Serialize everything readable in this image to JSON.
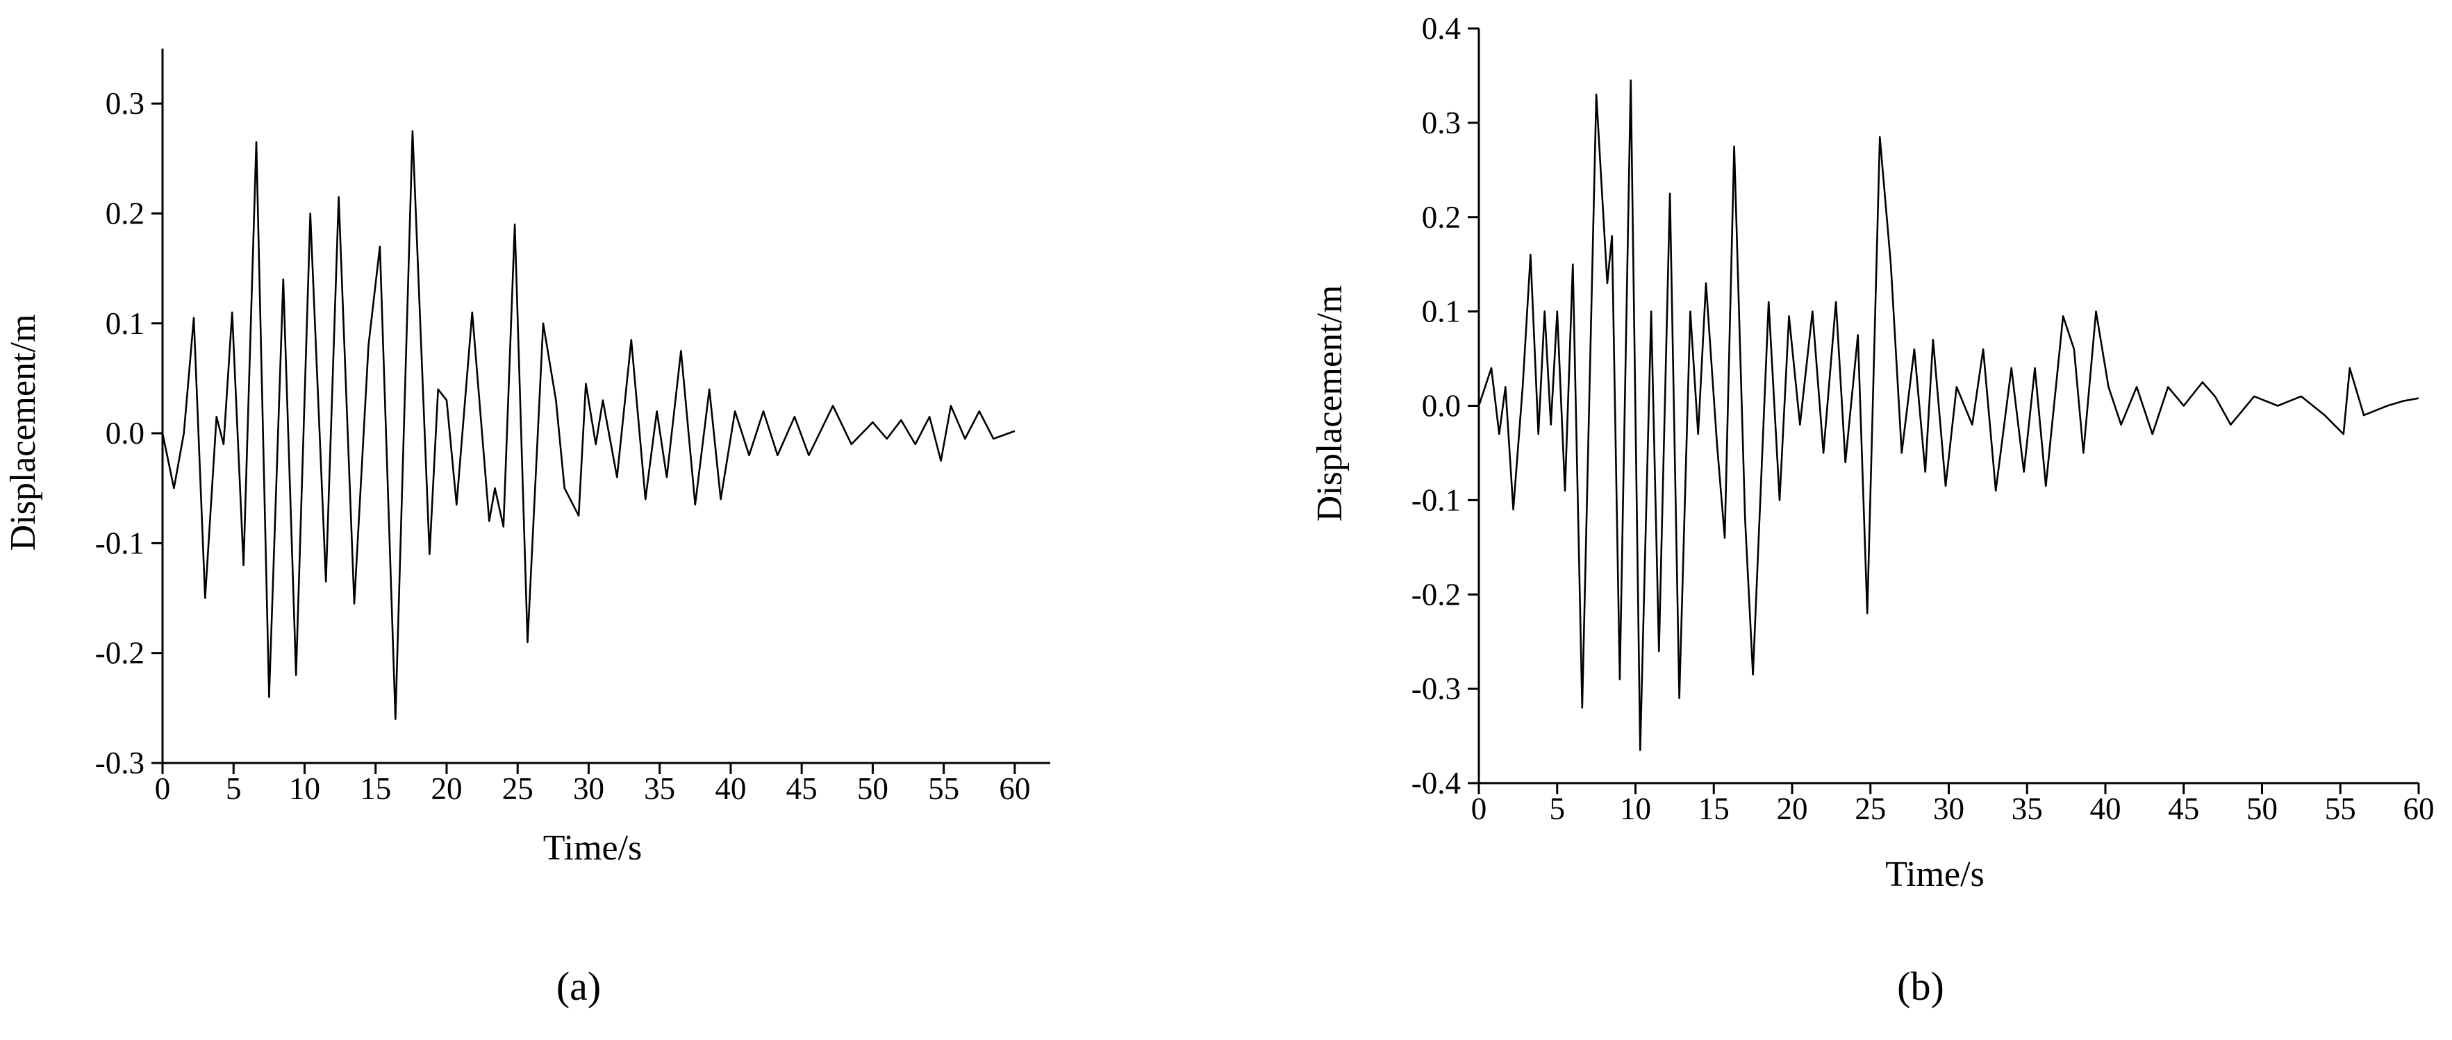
{
  "chart_data": [
    {
      "type": "line",
      "label": "(a)",
      "xlabel": "Time/s",
      "ylabel": "Displacement/m",
      "xlim": [
        0,
        62.5
      ],
      "ylim": [
        -0.3,
        0.35
      ],
      "xticks": [
        0,
        5,
        10,
        15,
        20,
        25,
        30,
        35,
        40,
        45,
        50,
        55,
        60
      ],
      "yticks": [
        -0.3,
        -0.2,
        -0.1,
        {
          "value": 0,
          "label": "0.0"
        },
        0.1,
        0.2,
        0.3
      ],
      "x": [
        0,
        0.8,
        1.5,
        2.2,
        3.0,
        3.8,
        4.3,
        4.9,
        5.7,
        6.6,
        7.5,
        8.5,
        9.4,
        10.4,
        11.5,
        12.4,
        13.5,
        14.5,
        15.3,
        16.4,
        17.6,
        18.8,
        19.4,
        20.0,
        20.7,
        21.8,
        23.0,
        23.4,
        24.0,
        24.8,
        25.7,
        26.8,
        27.7,
        28.3,
        29.3,
        29.8,
        30.5,
        31.0,
        32.0,
        33.0,
        34.0,
        34.8,
        35.5,
        36.5,
        37.5,
        38.5,
        39.3,
        40.3,
        41.3,
        42.3,
        43.3,
        44.5,
        45.5,
        47.2,
        48.5,
        50,
        51,
        52,
        53,
        54,
        54.8,
        55.5,
        56.5,
        57.5,
        58.5,
        60
      ],
      "series": [
        {
          "name": "Displacement",
          "color": "#000000",
          "values": [
            0,
            -0.05,
            0.0,
            0.105,
            -0.15,
            0.015,
            -0.01,
            0.11,
            -0.12,
            0.265,
            -0.24,
            0.14,
            -0.22,
            0.2,
            -0.135,
            0.215,
            -0.155,
            0.08,
            0.17,
            -0.26,
            0.275,
            -0.11,
            0.04,
            0.03,
            -0.065,
            0.11,
            -0.08,
            -0.05,
            -0.085,
            0.19,
            -0.19,
            0.1,
            0.03,
            -0.05,
            -0.075,
            0.045,
            -0.01,
            0.03,
            -0.04,
            0.085,
            -0.06,
            0.02,
            -0.04,
            0.075,
            -0.065,
            0.04,
            -0.06,
            0.02,
            -0.02,
            0.02,
            -0.02,
            0.015,
            -0.02,
            0.025,
            -0.01,
            0.01,
            -0.005,
            0.012,
            -0.01,
            0.015,
            -0.025,
            0.025,
            -0.005,
            0.02,
            -0.005,
            0.002
          ]
        }
      ]
    },
    {
      "type": "line",
      "label": "(b)",
      "xlabel": "Time/s",
      "ylabel": "Displacement/m",
      "xlim": [
        0,
        60
      ],
      "ylim": [
        -0.4,
        0.4
      ],
      "xticks": [
        0,
        5,
        10,
        15,
        20,
        25,
        30,
        35,
        40,
        45,
        50,
        55,
        60
      ],
      "yticks": [
        -0.4,
        -0.3,
        -0.2,
        -0.1,
        {
          "value": 0,
          "label": "0.0"
        },
        0.1,
        0.2,
        0.3,
        0.4
      ],
      "x": [
        0,
        0.8,
        1.3,
        1.7,
        2.2,
        2.8,
        3.3,
        3.8,
        4.2,
        4.6,
        5.0,
        5.5,
        6.0,
        6.6,
        7.5,
        8.2,
        8.5,
        9.0,
        9.7,
        10.3,
        11.0,
        11.5,
        12.2,
        12.8,
        13.5,
        14.0,
        14.5,
        15.2,
        15.7,
        16.3,
        17.0,
        17.5,
        18.5,
        19.2,
        19.8,
        20.5,
        21.3,
        22.0,
        22.8,
        23.4,
        24.2,
        24.8,
        25.6,
        26.3,
        27.0,
        27.8,
        28.5,
        29.0,
        29.8,
        30.5,
        31.5,
        32.2,
        33.0,
        34.0,
        34.8,
        35.5,
        36.2,
        37.3,
        38.0,
        38.6,
        39.4,
        40.2,
        41.0,
        42.0,
        43.0,
        44.0,
        45.0,
        46.2,
        47.0,
        48.0,
        49.5,
        51,
        52.5,
        54,
        55.2,
        55.6,
        56.5,
        58,
        59,
        60
      ],
      "series": [
        {
          "name": "Displacement",
          "color": "#000000",
          "values": [
            0,
            0.04,
            -0.03,
            0.02,
            -0.11,
            0.02,
            0.16,
            -0.03,
            0.1,
            -0.02,
            0.1,
            -0.09,
            0.15,
            -0.32,
            0.33,
            0.13,
            0.18,
            -0.29,
            0.345,
            -0.365,
            0.1,
            -0.26,
            0.225,
            -0.31,
            0.1,
            -0.03,
            0.13,
            -0.04,
            -0.14,
            0.275,
            -0.12,
            -0.285,
            0.11,
            -0.1,
            0.095,
            -0.02,
            0.1,
            -0.05,
            0.11,
            -0.06,
            0.075,
            -0.22,
            0.285,
            0.15,
            -0.05,
            0.06,
            -0.07,
            0.07,
            -0.085,
            0.02,
            -0.02,
            0.06,
            -0.09,
            0.04,
            -0.07,
            0.04,
            -0.085,
            0.095,
            0.06,
            -0.05,
            0.1,
            0.02,
            -0.02,
            0.02,
            -0.03,
            0.02,
            0.0,
            0.025,
            0.01,
            -0.02,
            0.01,
            0.0,
            0.01,
            -0.01,
            -0.03,
            0.04,
            -0.01,
            0.0,
            0.005,
            0.008
          ]
        }
      ]
    }
  ]
}
